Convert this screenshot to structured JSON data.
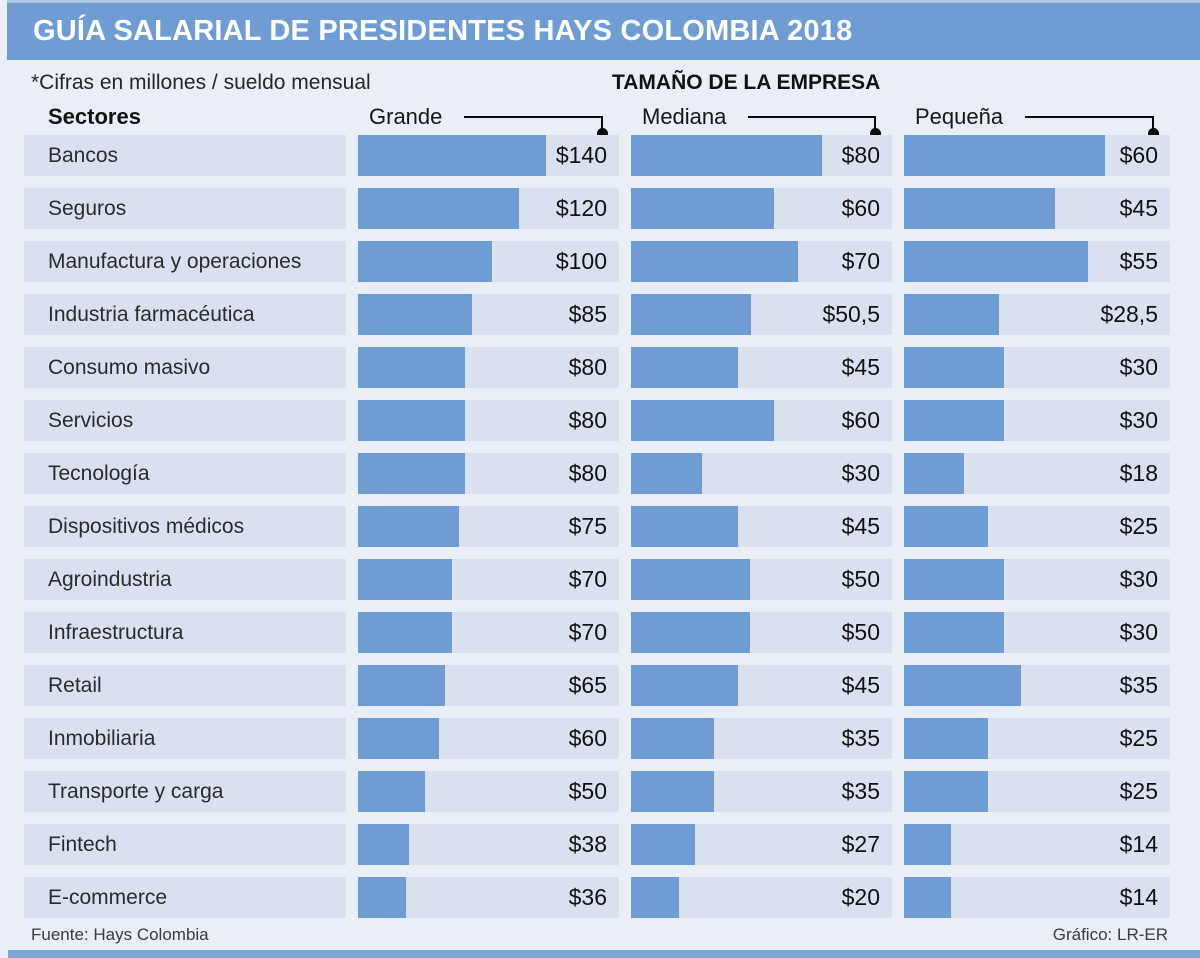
{
  "title": "GUÍA SALARIAL DE PRESIDENTES HAYS COLOMBIA 2018",
  "note": "*Cifras en millones / sueldo mensual",
  "group_header": "TAMAÑO DE LA EMPRESA",
  "col_headers": {
    "sectors": "Sectores",
    "large": "Grande",
    "medium": "Mediana",
    "small": "Pequeña"
  },
  "footer": {
    "source": "Fuente: Hays Colombia",
    "credit": "Gráfico: LR-ER"
  },
  "colors": {
    "accent_blue": "#6f9cd3",
    "row_background": "#d9e0f0",
    "page_background": "#eaeef7",
    "bottom_strip": "#7ba6d9",
    "title_text": "#ffffff"
  },
  "chart_data": {
    "type": "bar",
    "orientation": "horizontal",
    "title": "GUÍA SALARIAL DE PRESIDENTES HAYS COLOMBIA 2018",
    "units_note": "Cifras en millones / sueldo mensual",
    "categories": [
      "Bancos",
      "Seguros",
      "Manufactura y operaciones",
      "Industria farmacéutica",
      "Consumo masivo",
      "Servicios",
      "Tecnología",
      "Dispositivos médicos",
      "Agroindustria",
      "Infraestructura",
      "Retail",
      "Inmobiliaria",
      "Transporte y carga",
      "Fintech",
      "E-commerce"
    ],
    "series": [
      {
        "name": "Grande",
        "axis_max": 140,
        "values": [
          140,
          120,
          100,
          85,
          80,
          80,
          80,
          75,
          70,
          70,
          65,
          60,
          50,
          38,
          36
        ],
        "labels": [
          "$140",
          "$120",
          "$100",
          "$85",
          "$80",
          "$80",
          "$80",
          "$75",
          "$70",
          "$70",
          "$65",
          "$60",
          "$50",
          "$38",
          "$36"
        ]
      },
      {
        "name": "Mediana",
        "axis_max": 80,
        "values": [
          80,
          60,
          70,
          50.5,
          45,
          60,
          30,
          45,
          50,
          50,
          45,
          35,
          35,
          27,
          20
        ],
        "labels": [
          "$80",
          "$60",
          "$70",
          "$50,5",
          "$45",
          "$60",
          "$30",
          "$45",
          "$50",
          "$50",
          "$45",
          "$35",
          "$35",
          "$27",
          "$20"
        ]
      },
      {
        "name": "Pequeña",
        "axis_max": 60,
        "values": [
          60,
          45,
          55,
          28.5,
          30,
          30,
          18,
          25,
          30,
          30,
          35,
          25,
          25,
          14,
          14
        ],
        "labels": [
          "$60",
          "$45",
          "$55",
          "$28,5",
          "$30",
          "$30",
          "$18",
          "$25",
          "$30",
          "$30",
          "$35",
          "$25",
          "$25",
          "$14",
          "$14"
        ]
      }
    ],
    "legend_position": "none",
    "grid": false
  }
}
